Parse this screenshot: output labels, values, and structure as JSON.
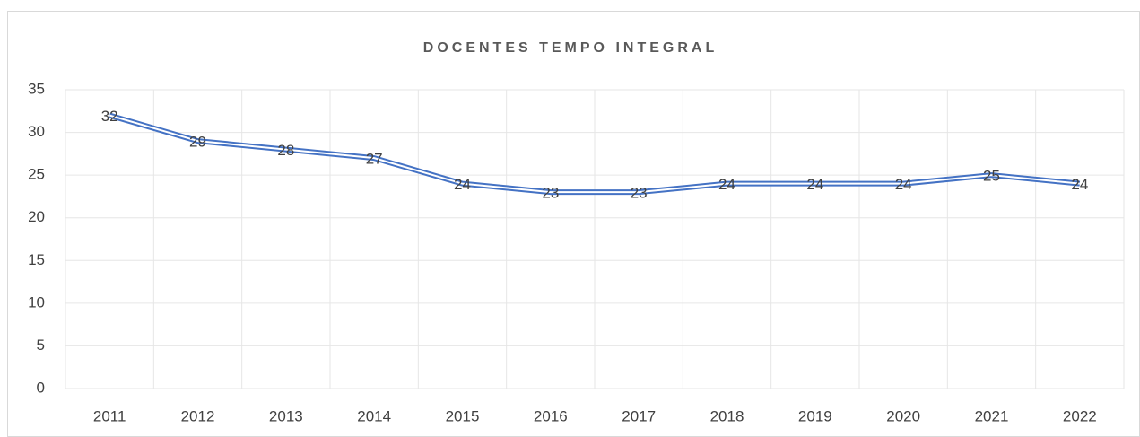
{
  "chart_data": {
    "type": "line",
    "title": "DOCENTES TEMPO INTEGRAL",
    "categories": [
      "2011",
      "2012",
      "2013",
      "2014",
      "2015",
      "2016",
      "2017",
      "2018",
      "2019",
      "2020",
      "2021",
      "2022"
    ],
    "values": [
      32,
      29,
      28,
      27,
      24,
      23,
      23,
      24,
      24,
      24,
      25,
      24
    ],
    "color": "#4472c4",
    "ylim": [
      0,
      35
    ],
    "yticks": [
      0,
      5,
      10,
      15,
      20,
      25,
      30,
      35
    ],
    "grid": true
  }
}
